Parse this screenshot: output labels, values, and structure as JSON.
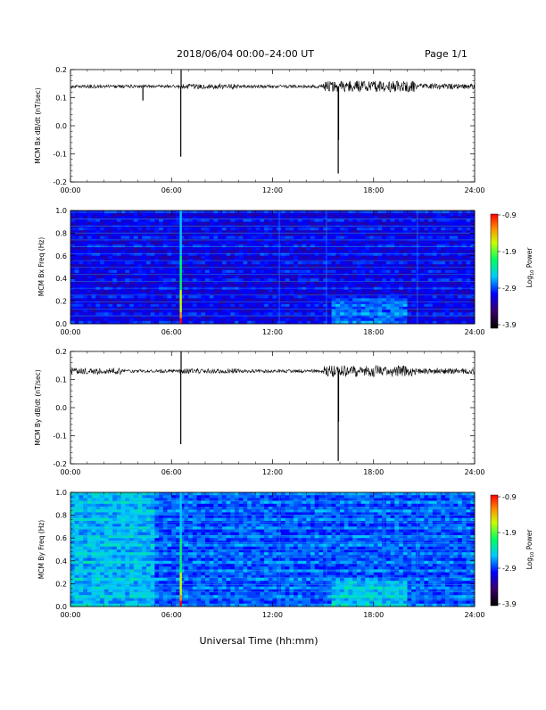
{
  "header": {
    "title": "2018/06/04  00:00–24:00 UT",
    "page": "Page 1/1"
  },
  "footer": {
    "xlabel": "Universal Time (hh:mm)"
  },
  "colorbar": {
    "ticks": [
      "-0.9",
      "-1.9",
      "-2.9",
      "-3.9"
    ],
    "label_log": "Log",
    "label_sub": "10",
    "label_power": " Power"
  },
  "x_ticks": [
    "00:00",
    "06:00",
    "12:00",
    "18:00",
    "24:00"
  ],
  "chart_data": [
    {
      "type": "line",
      "name": "bx-timeseries",
      "ylabel": "MCM Bx dB/dt (nT/sec)",
      "xlim": [
        0,
        24
      ],
      "ylim": [
        -0.2,
        0.2
      ],
      "yticks": [
        "0.2",
        "0.1",
        "0.0",
        "-0.1",
        "-0.2"
      ],
      "baseline": 0.14,
      "spikes": [
        {
          "x": 6.55,
          "y": -0.11
        },
        {
          "x": 6.57,
          "y": 0.2
        },
        {
          "x": 15.9,
          "y": -0.17
        },
        {
          "x": 15.92,
          "y": -0.05
        },
        {
          "x": 4.3,
          "y": 0.09
        }
      ]
    },
    {
      "type": "heatmap",
      "name": "bx-spectrogram",
      "ylabel": "MCM Bx Freq (Hz)",
      "xlim": [
        0,
        24
      ],
      "ylim": [
        0,
        1.0
      ],
      "yticks": [
        "1.0",
        "0.8",
        "0.6",
        "0.4",
        "0.2",
        "0.0"
      ],
      "clim": [
        -3.9,
        -0.9
      ],
      "bright_time": 6.55,
      "vertical_lines": [
        12.4,
        15.2,
        20.6
      ]
    },
    {
      "type": "line",
      "name": "by-timeseries",
      "ylabel": "MCM By dB/dt (nT/sec)",
      "xlim": [
        0,
        24
      ],
      "ylim": [
        -0.2,
        0.2
      ],
      "yticks": [
        "0.2",
        "0.1",
        "0.0",
        "-0.1",
        "-0.2"
      ],
      "baseline": 0.13,
      "spikes": [
        {
          "x": 6.55,
          "y": -0.13
        },
        {
          "x": 6.57,
          "y": 0.2
        },
        {
          "x": 15.9,
          "y": -0.19
        },
        {
          "x": 15.92,
          "y": -0.05
        }
      ]
    },
    {
      "type": "heatmap",
      "name": "by-spectrogram",
      "ylabel": "MCM By Freq (Hz)",
      "xlim": [
        0,
        24
      ],
      "ylim": [
        0,
        1.0
      ],
      "yticks": [
        "1.0",
        "0.8",
        "0.6",
        "0.4",
        "0.2",
        "0.0"
      ],
      "clim": [
        -3.9,
        -0.9
      ],
      "bright_time": 6.55,
      "vertical_lines": [
        12.4,
        15.2,
        18.6,
        20.6
      ]
    }
  ]
}
